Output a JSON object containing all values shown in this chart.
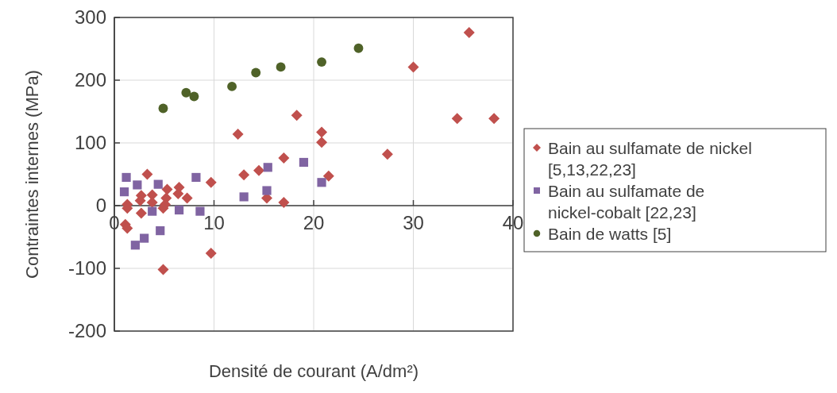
{
  "chart_data": {
    "type": "scatter",
    "xlabel": "Densité de courant (A/dm²)",
    "ylabel": "Contraintes internes (MPa)",
    "xlim": [
      0,
      40
    ],
    "xticks": [
      0,
      10,
      20,
      30,
      40
    ],
    "ylim": [
      -200,
      300
    ],
    "yticks": [
      -200,
      -100,
      0,
      100,
      200,
      300
    ],
    "grid": true,
    "legend": "right",
    "series": [
      {
        "name": "Bain au sulfamate de nickel [5,13,22,23]",
        "color": "#c0504d",
        "marker": "diamond",
        "x": [
          18.3,
          30.0,
          34.4,
          35.6,
          38.1,
          12.4,
          17.0,
          14.5,
          13.0,
          15.3,
          17.0,
          9.7,
          3.3,
          7.3,
          6.5,
          6.4,
          5.3,
          5.2,
          5.1,
          4.9,
          3.8,
          3.8,
          2.7,
          2.6,
          2.7,
          1.3,
          1.3,
          1.1,
          1.3,
          9.7,
          4.9,
          20.8,
          20.8,
          27.4,
          21.5
        ],
        "values": [
          144,
          221,
          139,
          276,
          139,
          114,
          76,
          56,
          49,
          12,
          5,
          37,
          50,
          12,
          29,
          19,
          26,
          12,
          2,
          -4,
          17,
          5,
          16,
          8,
          -12,
          2,
          -4,
          -30,
          -36,
          -76,
          -102,
          117,
          101,
          82,
          47
        ]
      },
      {
        "name": "Bain au sulfamate de nickel-cobalt [22,23]",
        "color": "#8064a2",
        "marker": "square",
        "x": [
          1.2,
          1.0,
          2.3,
          4.4,
          8.2,
          13.0,
          15.4,
          15.3,
          3.8,
          6.5,
          8.6,
          4.6,
          3.0,
          2.1,
          19.0,
          20.8
        ],
        "values": [
          45,
          22,
          33,
          34,
          45,
          14,
          61,
          24,
          -9,
          -7,
          -9,
          -40,
          -52,
          -63,
          69,
          37
        ]
      },
      {
        "name": "Bain de watts [5]",
        "color": "#4f6228",
        "marker": "circle",
        "x": [
          4.9,
          7.2,
          8.0,
          11.8,
          14.2,
          16.7,
          20.8,
          24.5
        ],
        "values": [
          155,
          180,
          174,
          190,
          212,
          221,
          229,
          251
        ]
      }
    ]
  }
}
